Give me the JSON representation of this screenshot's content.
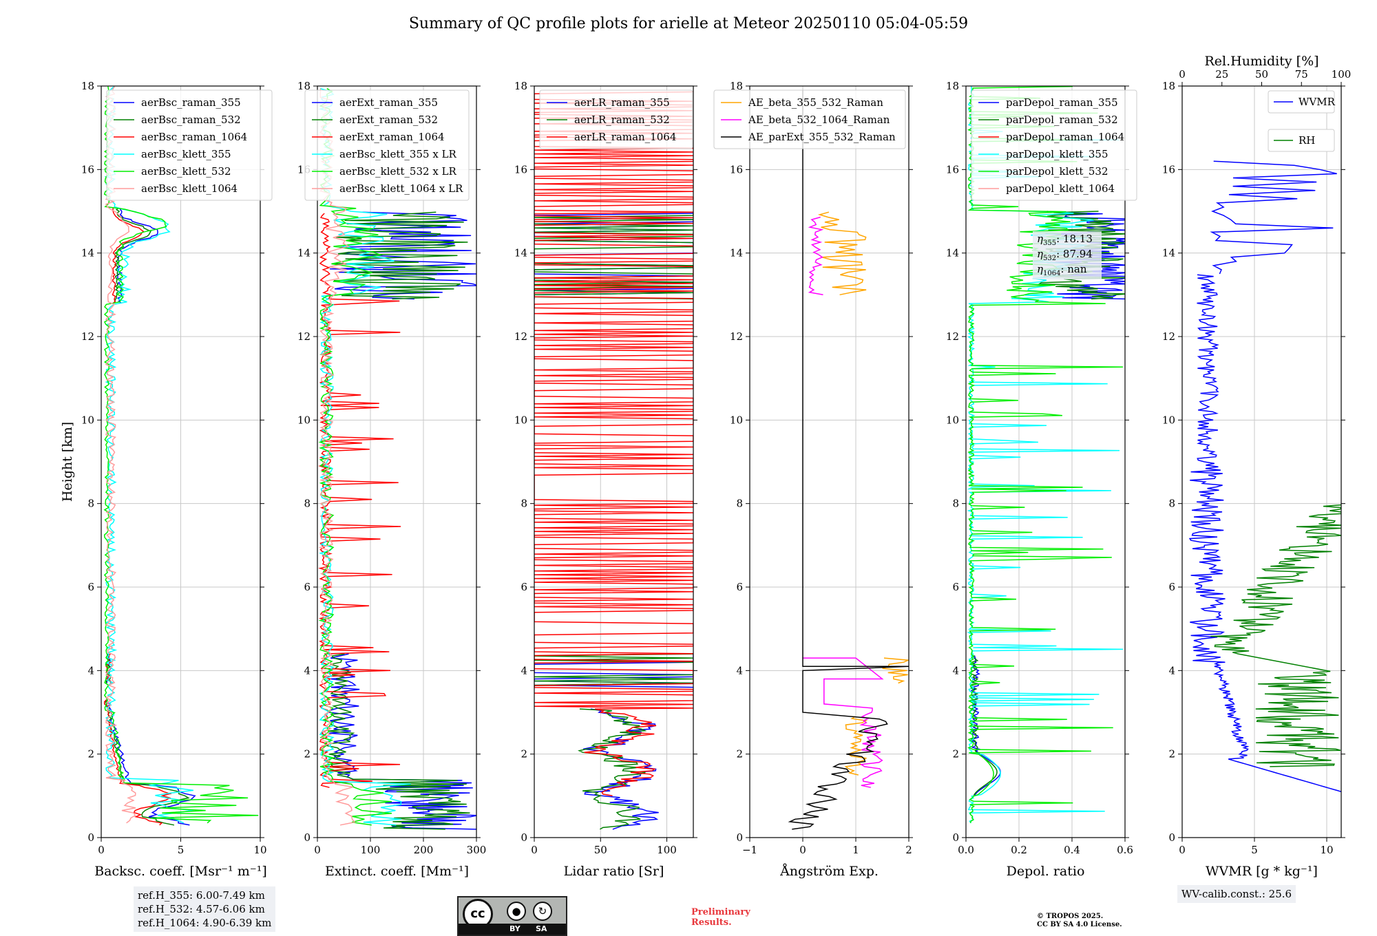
{
  "title": "Summary of QC profile plots for arielle at Meteor 20250110 05:04-05:59",
  "height_axis": {
    "label": "Height [km]",
    "ticks": [
      "0",
      "2",
      "4",
      "6",
      "8",
      "10",
      "12",
      "14",
      "16",
      "18"
    ],
    "range": [
      0,
      18
    ]
  },
  "chart_data": [
    {
      "id": "bsc",
      "type": "line",
      "xlabel": "Backsc. coeff. [Msr⁻¹ m⁻¹]",
      "xlim": [
        0,
        10
      ],
      "xticks": [
        0,
        5,
        10
      ],
      "xticklabels": [
        "0",
        "5",
        "10"
      ],
      "series": [
        {
          "name": "aerBsc_raman_355",
          "color": "#0000ff",
          "mode": "bsc_r",
          "scale": 1.0,
          "seed": 1
        },
        {
          "name": "aerBsc_raman_532",
          "color": "#008000",
          "mode": "bsc_r",
          "scale": 0.85,
          "seed": 2
        },
        {
          "name": "aerBsc_raman_1064",
          "color": "#ff0000",
          "mode": "bsc_r",
          "scale": 0.7,
          "seed": 3
        },
        {
          "name": "aerBsc_klett_355",
          "color": "#00ffff",
          "mode": "bsc_k",
          "scale": 1.0,
          "seed": 4
        },
        {
          "name": "aerBsc_klett_532",
          "color": "#00ee00",
          "mode": "bsc_k532",
          "scale": 1.0,
          "seed": 5
        },
        {
          "name": "aerBsc_klett_1064",
          "color": "#ff9b9b",
          "mode": "bsc_k",
          "scale": 0.4,
          "seed": 6
        }
      ]
    },
    {
      "id": "ext",
      "type": "line",
      "xlabel": "Extinct. coeff. [Mm⁻¹]",
      "xlim": [
        0,
        300
      ],
      "xticks": [
        0,
        100,
        200,
        300
      ],
      "xticklabels": [
        "0",
        "100",
        "200",
        "300"
      ],
      "series": [
        {
          "name": "aerExt_raman_355",
          "color": "#0000ff",
          "mode": "ext_r",
          "scale": 1.0,
          "seed": 11
        },
        {
          "name": "aerExt_raman_532",
          "color": "#008000",
          "mode": "ext_r",
          "scale": 0.9,
          "seed": 12
        },
        {
          "name": "aerExt_raman_1064",
          "color": "#ff0000",
          "mode": "ext_red",
          "scale": 1.0,
          "seed": 13
        },
        {
          "name": "aerBsc_klett_355 x LR",
          "color": "#00ffff",
          "mode": "ext_k",
          "scale": 1.0,
          "seed": 14
        },
        {
          "name": "aerBsc_klett_532 x LR",
          "color": "#00ee00",
          "mode": "ext_k",
          "scale": 0.8,
          "seed": 15
        },
        {
          "name": "aerBsc_klett_1064 x LR",
          "color": "#ff9b9b",
          "mode": "ext_k",
          "scale": 0.4,
          "seed": 16
        }
      ]
    },
    {
      "id": "lr",
      "type": "line",
      "xlabel": "Lidar ratio [Sr]",
      "xlim": [
        0,
        120
      ],
      "xticks": [
        0,
        50,
        100
      ],
      "xticklabels": [
        "0",
        "50",
        "100"
      ],
      "series": [
        {
          "name": "aerLR_raman_355",
          "color": "#0000ff",
          "mode": "lr",
          "scale": 1.0,
          "seed": 21
        },
        {
          "name": "aerLR_raman_532",
          "color": "#008000",
          "mode": "lr",
          "scale": 0.9,
          "seed": 22
        },
        {
          "name": "aerLR_raman_1064",
          "color": "#ff0000",
          "mode": "lr_red",
          "scale": 1.0,
          "seed": 23
        }
      ]
    },
    {
      "id": "ae",
      "type": "line",
      "xlabel": "Ångström Exp.",
      "xlim": [
        -1,
        2
      ],
      "xticks": [
        -1,
        0,
        1,
        2
      ],
      "xticklabels": [
        "−1",
        "0",
        "1",
        "2"
      ],
      "series": [
        {
          "name": "AE_beta_355_532_Raman",
          "color": "#ffa500",
          "mode": "ae1",
          "scale": 1.0,
          "seed": 31
        },
        {
          "name": "AE_beta_532_1064_Raman",
          "color": "#ff00ff",
          "mode": "ae2",
          "scale": 1.0,
          "seed": 32
        },
        {
          "name": "AE_parExt_355_532_Raman",
          "color": "#000000",
          "mode": "ae3",
          "scale": 1.0,
          "seed": 33
        }
      ]
    },
    {
      "id": "dep",
      "type": "line",
      "xlabel": "Depol. ratio",
      "xlim": [
        0,
        0.6
      ],
      "xticks": [
        0,
        0.2,
        0.4,
        0.6
      ],
      "xticklabels": [
        "0.0",
        "0.2",
        "0.4",
        "0.6"
      ],
      "series": [
        {
          "name": "parDepol_raman_355",
          "color": "#0000ff",
          "mode": "dep_r",
          "scale": 1.0,
          "seed": 41
        },
        {
          "name": "parDepol_raman_532",
          "color": "#008000",
          "mode": "dep_r",
          "scale": 0.9,
          "seed": 42
        },
        {
          "name": "parDepol_raman_1064",
          "color": "#ff0000",
          "mode": "none",
          "scale": 1.0,
          "seed": 43
        },
        {
          "name": "parDepol_klett_355",
          "color": "#00ffff",
          "mode": "dep_k",
          "scale": 1.0,
          "seed": 44
        },
        {
          "name": "parDepol_klett_532",
          "color": "#00ee00",
          "mode": "dep_k",
          "scale": 0.8,
          "seed": 45
        },
        {
          "name": "parDepol_klett_1064",
          "color": "#ff9b9b",
          "mode": "none",
          "scale": 1.0,
          "seed": 46
        }
      ]
    },
    {
      "id": "wv",
      "type": "line",
      "xlabel": "WVMR [g * kg⁻¹]",
      "xlim": [
        0,
        11
      ],
      "xticks": [
        0,
        5,
        10
      ],
      "xticklabels": [
        "0",
        "5",
        "10"
      ],
      "top_axis": {
        "label": "Rel.Humidity [%]",
        "xlim": [
          0,
          100
        ],
        "xticks": [
          0,
          25,
          50,
          75,
          100
        ],
        "xticklabels": [
          "0",
          "25",
          "50",
          "75",
          "100"
        ]
      },
      "series": [
        {
          "name": "WVMR",
          "color": "#0000ff",
          "mode": "wvmr",
          "scale": 1.0,
          "seed": 51
        },
        {
          "name": "RH",
          "color": "#008000",
          "mode": "rh",
          "scale": 1.0,
          "seed": 52
        }
      ]
    }
  ],
  "eta_annotation": [
    {
      "label": "η",
      "sub": "355",
      "value": ": 18.13"
    },
    {
      "label": "η",
      "sub": "532",
      "value": ": 87.94"
    },
    {
      "label": "η",
      "sub": "1064",
      "value": ": nan"
    }
  ],
  "ref_heights": [
    "ref.H_355: 6.00-7.49 km",
    "ref.H_532: 4.57-6.06 km",
    "ref.H_1064: 4.90-6.39 km"
  ],
  "wv_calib": "WV-calib.const.: 25.6",
  "license_badge": {
    "cc": "cc",
    "by": "BY",
    "sa": "SA"
  },
  "preliminary": [
    "Preliminary",
    "Results."
  ],
  "copyright": [
    "© TROPOS 2025.",
    "CC BY SA 4.0 License."
  ]
}
